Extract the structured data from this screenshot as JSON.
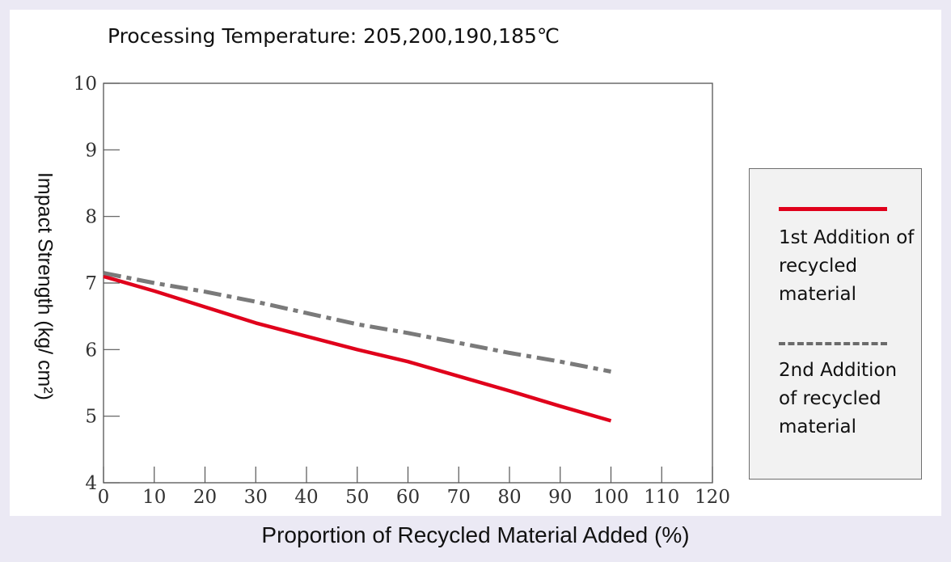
{
  "chart_data": {
    "type": "line",
    "title": "Processing Temperature: 205,200,190,185℃",
    "xlabel": "Proportion of Recycled Material Added (%)",
    "ylabel": "Impact Strength (kg/ cm²)",
    "xlim": [
      0,
      120
    ],
    "ylim": [
      4,
      10
    ],
    "xticks": [
      0,
      10,
      20,
      30,
      40,
      50,
      60,
      70,
      80,
      90,
      100,
      110,
      120
    ],
    "yticks": [
      4,
      5,
      6,
      7,
      8,
      9,
      10
    ],
    "grid": false,
    "legend_position": "right",
    "series": [
      {
        "name": "1st Addition of recycled material",
        "color": "#e0001b",
        "style": "solid",
        "x": [
          0,
          10,
          20,
          30,
          40,
          50,
          60,
          70,
          80,
          90,
          100
        ],
        "y": [
          7.1,
          6.88,
          6.64,
          6.4,
          6.2,
          6.0,
          5.82,
          5.6,
          5.38,
          5.15,
          4.93
        ]
      },
      {
        "name": "2nd Addition of recycled material",
        "color": "#7a7a7a",
        "style": "dash-dot",
        "x": [
          0,
          10,
          20,
          30,
          40,
          50,
          60,
          70,
          80,
          90,
          100
        ],
        "y": [
          7.15,
          7.0,
          6.87,
          6.72,
          6.55,
          6.38,
          6.25,
          6.1,
          5.95,
          5.82,
          5.67
        ]
      }
    ]
  }
}
